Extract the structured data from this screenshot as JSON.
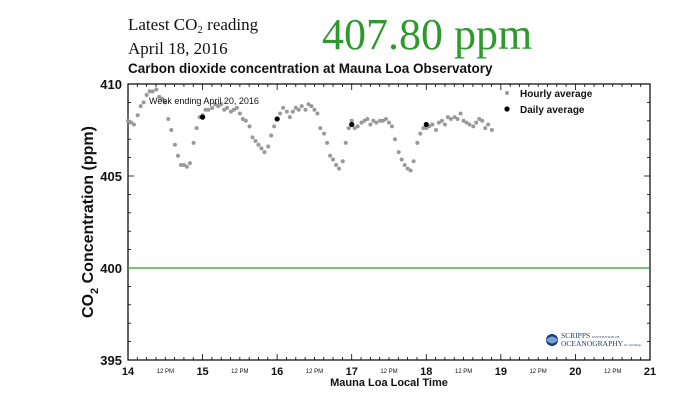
{
  "header": {
    "latest_prefix": "Latest CO",
    "latest_sub": "2",
    "latest_suffix": " reading",
    "date": "April 18, 2016",
    "value": "407.80 ppm",
    "value_color": "#2e9a2e"
  },
  "logo": {
    "line1": "SCRIPPS",
    "line1_small": "INSTITUTION OF",
    "line2": "OCEANOGRAPHY",
    "line2_small": "UC San Diego",
    "icon": "scripps-globe-icon"
  },
  "chart_data": {
    "type": "scatter",
    "title": "Carbon dioxide concentration at Mauna Loa Observatory",
    "xlabel": "Mauna Loa Local Time",
    "ylabel": "CO2 Concentration (ppm)",
    "ylabel_parts": [
      "CO",
      "2",
      " Concentration (ppm)"
    ],
    "annotation": "Week ending April 20, 2016",
    "xlim": [
      14,
      21
    ],
    "ylim": [
      395,
      410
    ],
    "x_ticks": [
      "14",
      "15",
      "16",
      "17",
      "18",
      "19",
      "20",
      "21"
    ],
    "x_tick_values": [
      14,
      15,
      16,
      17,
      18,
      19,
      20,
      21
    ],
    "noon_tick_label": "12 PM",
    "noon_tick_values": [
      14.5,
      15.5,
      16.5,
      17.5,
      18.5,
      19.5,
      20.5
    ],
    "y_ticks": [
      "395",
      "400",
      "405",
      "410"
    ],
    "y_tick_values": [
      395,
      400,
      405,
      410
    ],
    "reference_line": {
      "y": 400,
      "color": "#2e9a2e"
    },
    "legend_position": "top-right",
    "series": [
      {
        "name": "Hourly average",
        "color": "#999999",
        "marker": "small-dot",
        "points": [
          [
            14.0,
            408.0
          ],
          [
            14.04,
            407.9
          ],
          [
            14.08,
            407.8
          ],
          [
            14.13,
            408.3
          ],
          [
            14.17,
            408.8
          ],
          [
            14.21,
            409.0
          ],
          [
            14.25,
            409.4
          ],
          [
            14.29,
            409.6
          ],
          [
            14.33,
            409.6
          ],
          [
            14.38,
            409.7
          ],
          [
            14.42,
            409.3
          ],
          [
            14.46,
            409.2
          ],
          [
            14.5,
            409.0
          ],
          [
            14.54,
            408.1
          ],
          [
            14.58,
            407.5
          ],
          [
            14.63,
            406.7
          ],
          [
            14.67,
            406.1
          ],
          [
            14.71,
            405.6
          ],
          [
            14.75,
            405.6
          ],
          [
            14.79,
            405.5
          ],
          [
            14.83,
            405.7
          ],
          [
            14.88,
            406.8
          ],
          [
            14.92,
            407.6
          ],
          [
            14.96,
            408.2
          ],
          [
            15.0,
            408.3
          ],
          [
            15.04,
            408.6
          ],
          [
            15.08,
            408.6
          ],
          [
            15.13,
            408.7
          ],
          [
            15.17,
            408.9
          ],
          [
            15.21,
            408.8
          ],
          [
            15.25,
            408.9
          ],
          [
            15.29,
            408.6
          ],
          [
            15.33,
            408.7
          ],
          [
            15.38,
            408.5
          ],
          [
            15.42,
            408.6
          ],
          [
            15.46,
            408.7
          ],
          [
            15.5,
            408.4
          ],
          [
            15.54,
            408.1
          ],
          [
            15.58,
            408.0
          ],
          [
            15.63,
            407.7
          ],
          [
            15.67,
            407.1
          ],
          [
            15.71,
            406.9
          ],
          [
            15.75,
            406.7
          ],
          [
            15.79,
            406.5
          ],
          [
            15.83,
            406.3
          ],
          [
            15.88,
            406.6
          ],
          [
            15.92,
            407.2
          ],
          [
            15.96,
            407.7
          ],
          [
            16.0,
            408.1
          ],
          [
            16.04,
            408.4
          ],
          [
            16.08,
            408.7
          ],
          [
            16.13,
            408.5
          ],
          [
            16.17,
            408.2
          ],
          [
            16.21,
            408.5
          ],
          [
            16.25,
            408.7
          ],
          [
            16.29,
            408.6
          ],
          [
            16.33,
            408.8
          ],
          [
            16.38,
            408.6
          ],
          [
            16.42,
            408.9
          ],
          [
            16.46,
            408.8
          ],
          [
            16.5,
            408.6
          ],
          [
            16.54,
            408.4
          ],
          [
            16.58,
            407.6
          ],
          [
            16.63,
            407.3
          ],
          [
            16.67,
            406.8
          ],
          [
            16.71,
            406.1
          ],
          [
            16.75,
            405.9
          ],
          [
            16.79,
            405.6
          ],
          [
            16.83,
            405.4
          ],
          [
            16.88,
            405.8
          ],
          [
            16.92,
            406.8
          ],
          [
            16.96,
            407.6
          ],
          [
            17.0,
            408.0
          ],
          [
            17.04,
            407.6
          ],
          [
            17.08,
            407.7
          ],
          [
            17.13,
            407.9
          ],
          [
            17.17,
            408.0
          ],
          [
            17.21,
            408.1
          ],
          [
            17.25,
            407.8
          ],
          [
            17.29,
            408.0
          ],
          [
            17.33,
            407.9
          ],
          [
            17.38,
            408.0
          ],
          [
            17.42,
            408.0
          ],
          [
            17.46,
            408.1
          ],
          [
            17.5,
            407.9
          ],
          [
            17.54,
            407.7
          ],
          [
            17.58,
            407.0
          ],
          [
            17.63,
            406.3
          ],
          [
            17.67,
            405.9
          ],
          [
            17.71,
            405.6
          ],
          [
            17.75,
            405.4
          ],
          [
            17.79,
            405.3
          ],
          [
            17.83,
            405.8
          ],
          [
            17.88,
            406.8
          ],
          [
            17.92,
            407.3
          ],
          [
            17.96,
            407.6
          ],
          [
            18.0,
            407.6
          ],
          [
            18.04,
            407.7
          ],
          [
            18.08,
            407.8
          ],
          [
            18.13,
            407.5
          ],
          [
            18.17,
            407.9
          ],
          [
            18.21,
            408.0
          ],
          [
            18.25,
            407.8
          ],
          [
            18.29,
            408.2
          ],
          [
            18.33,
            408.1
          ],
          [
            18.38,
            408.2
          ],
          [
            18.42,
            408.1
          ],
          [
            18.46,
            408.4
          ],
          [
            18.5,
            408.0
          ],
          [
            18.54,
            407.9
          ],
          [
            18.58,
            407.8
          ],
          [
            18.63,
            407.7
          ],
          [
            18.67,
            407.9
          ],
          [
            18.71,
            408.1
          ],
          [
            18.75,
            408.0
          ],
          [
            18.79,
            407.6
          ],
          [
            18.83,
            407.8
          ],
          [
            18.88,
            407.5
          ]
        ]
      },
      {
        "name": "Daily average",
        "color": "#000000",
        "marker": "dot",
        "points": [
          [
            15.0,
            408.2
          ],
          [
            16.0,
            408.1
          ],
          [
            17.0,
            407.8
          ],
          [
            18.0,
            407.8
          ]
        ]
      }
    ]
  }
}
